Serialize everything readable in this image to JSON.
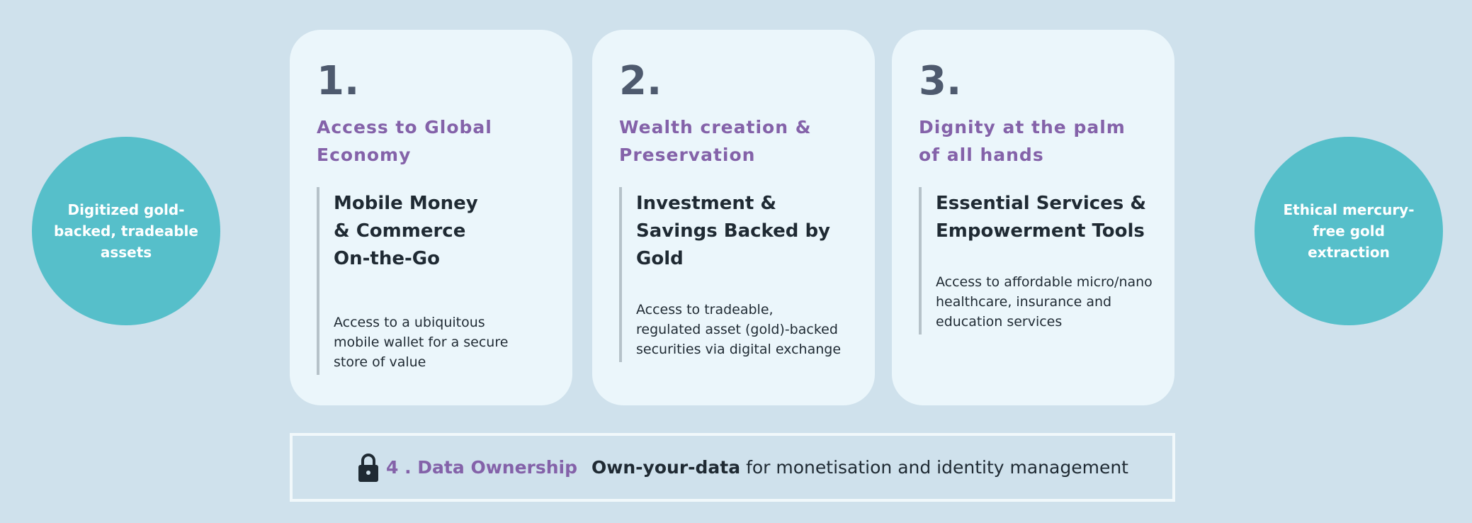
{
  "left_circle": "Digitized gold-backed, tradeable assets",
  "right_circle": "Ethical mercury-free gold extraction",
  "cards": [
    {
      "number": "1.",
      "title": "Access to Global Economy",
      "subtitle": "Mobile Money & Commerce On-the-Go",
      "body": "Access to a ubiquitous mobile wallet for a secure store of value"
    },
    {
      "number": "2.",
      "title": "Wealth creation & Preservation",
      "subtitle": "Investment & Savings Backed by Gold",
      "body": "Access to tradeable, regulated asset (gold)-backed securities via digital exchange"
    },
    {
      "number": "3.",
      "title": "Dignity at the palm of all hands",
      "subtitle": "Essential Services & Empowerment Tools",
      "body": "Access to affordable micro/nano healthcare, insurance and education services"
    }
  ],
  "bottom": {
    "icon": "lock-icon",
    "heading": "4 . Data Ownership",
    "bold": "Own-your-data",
    "text": " for monetisation and identity management"
  },
  "colors": {
    "accent": "#8462a9",
    "circle": "#56bfca",
    "background": "#cfe1ec"
  }
}
